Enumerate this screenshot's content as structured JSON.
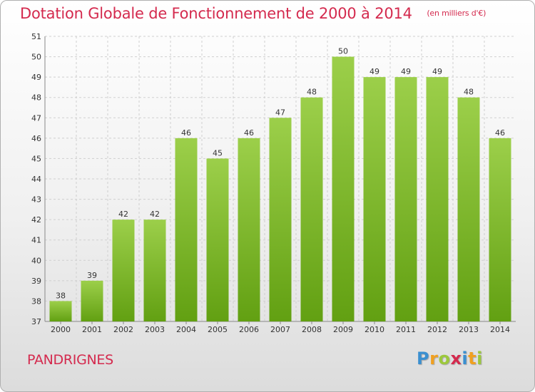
{
  "header": {
    "title": "Dotation Globale de Fonctionnement de 2000 à 2014",
    "subtitle": "(en milliers d'€)"
  },
  "footer": {
    "place_name": "PANDRIGNES",
    "brand": {
      "letters": [
        "P",
        "r",
        "o",
        "x",
        "i",
        "t",
        "i"
      ],
      "colors": [
        "#3a8fd0",
        "#f0a020",
        "#9cc83c",
        "#d42a4e",
        "#3a8fd0",
        "#f0a020",
        "#9cc83c"
      ]
    }
  },
  "chart_data": {
    "type": "bar",
    "title": "Dotation Globale de Fonctionnement de 2000 à 2014",
    "subtitle": "(en milliers d'€)",
    "xlabel": "",
    "ylabel": "",
    "categories": [
      "2000",
      "2001",
      "2002",
      "2003",
      "2004",
      "2005",
      "2006",
      "2007",
      "2008",
      "2009",
      "2010",
      "2011",
      "2012",
      "2013",
      "2014"
    ],
    "values": [
      38,
      39,
      42,
      42,
      46,
      45,
      46,
      47,
      48,
      50,
      49,
      49,
      49,
      48,
      46
    ],
    "ylim": [
      37,
      51
    ],
    "yticks": [
      37,
      38,
      39,
      40,
      41,
      42,
      43,
      44,
      45,
      46,
      47,
      48,
      49,
      50,
      51
    ],
    "grid": true,
    "data_labels": true,
    "colors": {
      "bar_top": "#9ccf4a",
      "bar_bottom": "#62a012",
      "grid": "#cfcfcf",
      "axis_text": "#333333"
    }
  }
}
